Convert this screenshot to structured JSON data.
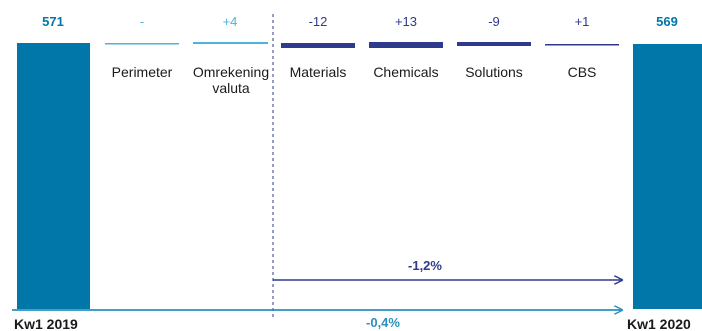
{
  "chart_data": {
    "type": "bar",
    "subtype": "waterfall",
    "colors": {
      "endpoint": "#0077a8",
      "light_step": "#4fb3d9",
      "dark_step": "#2e3a8c",
      "arrow_lower": "#2b8fbf"
    },
    "bars": [
      {
        "category": "Kw1 2019",
        "kind": "total",
        "value": 571,
        "label": "571"
      },
      {
        "category": "Perimeter",
        "kind": "step",
        "value": 0,
        "label": "-"
      },
      {
        "category": "Omrekening valuta",
        "kind": "step",
        "value": 4,
        "label": "+4"
      },
      {
        "category": "Materials",
        "kind": "step",
        "value": -12,
        "label": "-12"
      },
      {
        "category": "Chemicals",
        "kind": "step",
        "value": 13,
        "label": "+13"
      },
      {
        "category": "Solutions",
        "kind": "step",
        "value": -9,
        "label": "-9"
      },
      {
        "category": "CBS",
        "kind": "step",
        "value": 1,
        "label": "+1"
      },
      {
        "category": "Kw1 2020",
        "kind": "total",
        "value": 569,
        "label": "569"
      }
    ],
    "category_labels": {
      "perimeter": "Perimeter",
      "omrekening_line1": "Omrekening",
      "omrekening_line2": "valuta",
      "materials": "Materials",
      "chemicals": "Chemicals",
      "solutions": "Solutions",
      "cbs": "CBS",
      "start": "Kw1 2019",
      "end": "Kw1 2020"
    },
    "annotations": {
      "organic_change": "-1,2%",
      "total_change": "-0,4%"
    }
  }
}
